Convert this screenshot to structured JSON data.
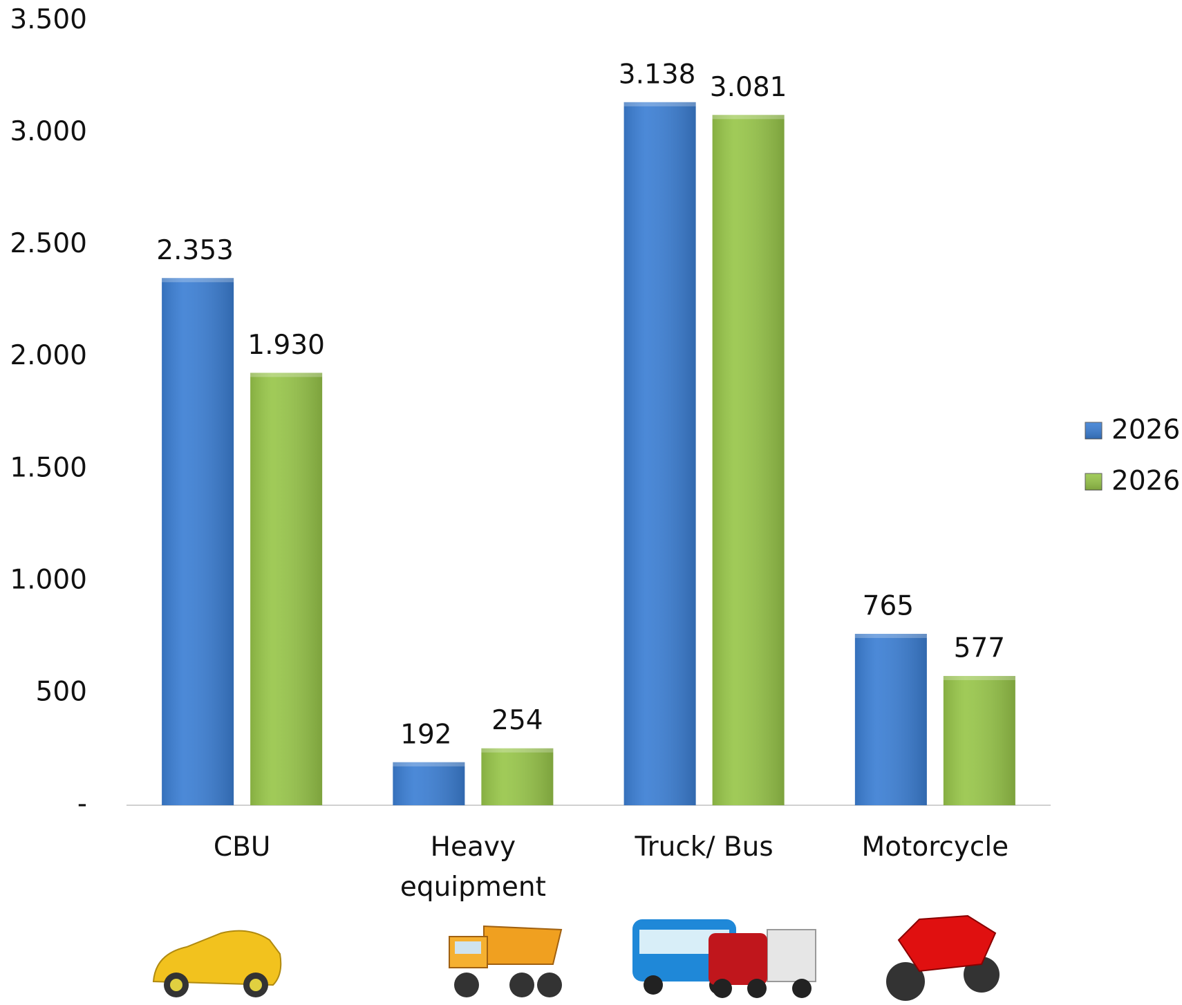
{
  "chart_data": {
    "type": "bar",
    "categories": [
      "CBU",
      "Heavy equipment",
      "Truck/ Bus",
      "Motorcycle"
    ],
    "series": [
      {
        "name": "2026",
        "color": "#3c7fd4",
        "values": [
          2353,
          192,
          3138,
          765
        ],
        "value_labels": [
          "2.353",
          "192",
          "3.138",
          "765"
        ]
      },
      {
        "name": "2026",
        "color": "#98c64a",
        "values": [
          1930,
          254,
          3081,
          577
        ],
        "value_labels": [
          "1.930",
          "254",
          "3.081",
          "577"
        ]
      }
    ],
    "ylim": [
      0,
      3500
    ],
    "yticks": [
      {
        "value": 0,
        "label": "-"
      },
      {
        "value": 500,
        "label": "500"
      },
      {
        "value": 1000,
        "label": "1.000"
      },
      {
        "value": 1500,
        "label": "1.500"
      },
      {
        "value": 2000,
        "label": "2.000"
      },
      {
        "value": 2500,
        "label": "2.500"
      },
      {
        "value": 3000,
        "label": "3.000"
      },
      {
        "value": 3500,
        "label": "3.500"
      }
    ],
    "grid": false,
    "legend": "right"
  }
}
